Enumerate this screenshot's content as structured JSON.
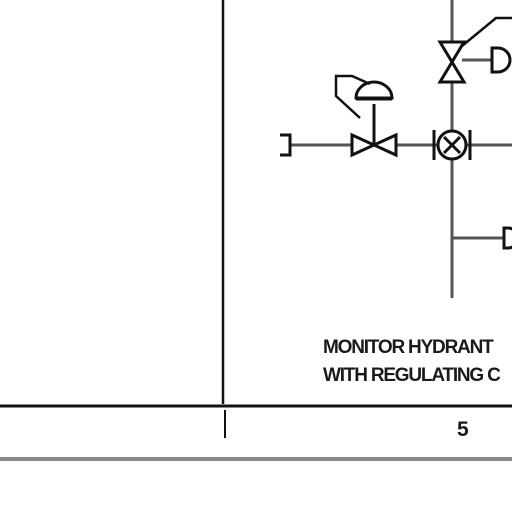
{
  "caption": {
    "line1": "MONITOR HYDRANT",
    "line2": "WITH REGULATING C"
  },
  "title_block": {
    "column_number": "5"
  },
  "symbols": [
    "gate-valve-icon",
    "diaphragm-actuator-icon",
    "control-valve-icon",
    "flow-indicator-icon",
    "hose-connection-icon",
    "pipe-cap-icon"
  ]
}
